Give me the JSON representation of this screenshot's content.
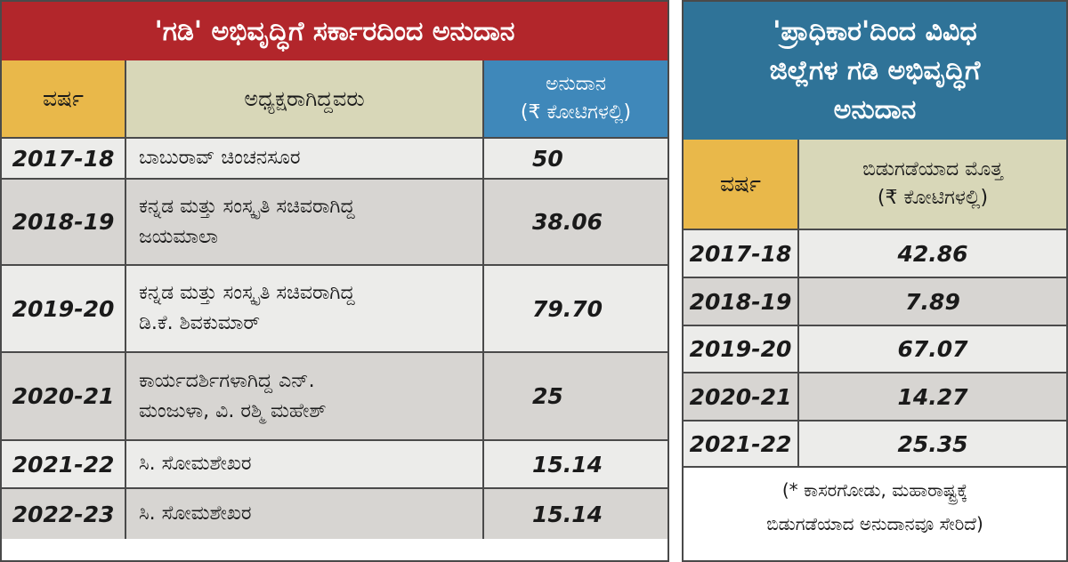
{
  "left": {
    "title": "'ಗಡಿ' ಅಭಿವೃದ್ಧಿಗೆ ಸರ್ಕಾರದಿಂದ ಅನುದಾನ",
    "header": {
      "year": "ವರ್ಷ",
      "name": "ಅಧ್ಯಕ್ಷರಾಗಿದ್ದವರು",
      "amount_line1": "ಅನುದಾನ",
      "amount_line2": "(₹ ಕೋಟಿಗಳಲ್ಲಿ)"
    },
    "rows": [
      {
        "year": "2017-18",
        "name1": "ಬಾಬುರಾವ್ ಚಿಂಚನಸೂರ",
        "name2": "",
        "amount": "50"
      },
      {
        "year": "2018-19",
        "name1": "ಕನ್ನಡ ಮತ್ತು ಸಂಸ್ಕೃತಿ ಸಚಿವರಾಗಿದ್ದ",
        "name2": "ಜಯಮಾಲಾ",
        "amount": "38.06"
      },
      {
        "year": "2019-20",
        "name1": "ಕನ್ನಡ ಮತ್ತು ಸಂಸ್ಕೃತಿ ಸಚಿವರಾಗಿದ್ದ",
        "name2": "ಡಿ.ಕೆ. ಶಿವಕುಮಾರ್",
        "amount": "79.70"
      },
      {
        "year": "2020-21",
        "name1": "ಕಾರ್ಯದರ್ಶಿಗಳಾಗಿದ್ದ ಎನ್.",
        "name2": "ಮಂಜುಳಾ, ವಿ. ರಶ್ಮಿ ಮಹೇಶ್",
        "amount": "25"
      },
      {
        "year": "2021-22",
        "name1": "ಸಿ. ಸೋಮಶೇಖರ",
        "name2": "",
        "amount": "15.14"
      },
      {
        "year": "2022-23",
        "name1": "ಸಿ. ಸೋಮಶೇಖರ",
        "name2": "",
        "amount": "15.14"
      }
    ]
  },
  "right": {
    "title_line1": "'ಪ್ರಾಧಿಕಾರ'ದಿಂದ ವಿವಿಧ",
    "title_line2": "ಜಿಲ್ಲೆಗಳ ಗಡಿ ಅಭಿವೃದ್ಧಿಗೆ",
    "title_line3": "ಅನುದಾನ",
    "header": {
      "year": "ವರ್ಷ",
      "amount_line1": "ಬಿಡುಗಡೆಯಾದ ಮೊತ್ತ",
      "amount_line2": "(₹ ಕೋಟಿಗಳಲ್ಲಿ)"
    },
    "rows": [
      {
        "year": "2017-18",
        "amount": "42.86"
      },
      {
        "year": "2018-19",
        "amount": "7.89"
      },
      {
        "year": "2019-20",
        "amount": "67.07"
      },
      {
        "year": "2020-21",
        "amount": "14.27"
      },
      {
        "year": "2021-22",
        "amount": "25.35"
      }
    ],
    "footnote_line1": "(* ಕಾಸರಗೋಡು, ಮಹಾರಾಷ್ಟ್ರಕ್ಕೆ",
    "footnote_line2": "ಬಿಡುಗಡೆಯಾದ ಅನುದಾನವೂ ಸೇರಿದೆ)"
  }
}
